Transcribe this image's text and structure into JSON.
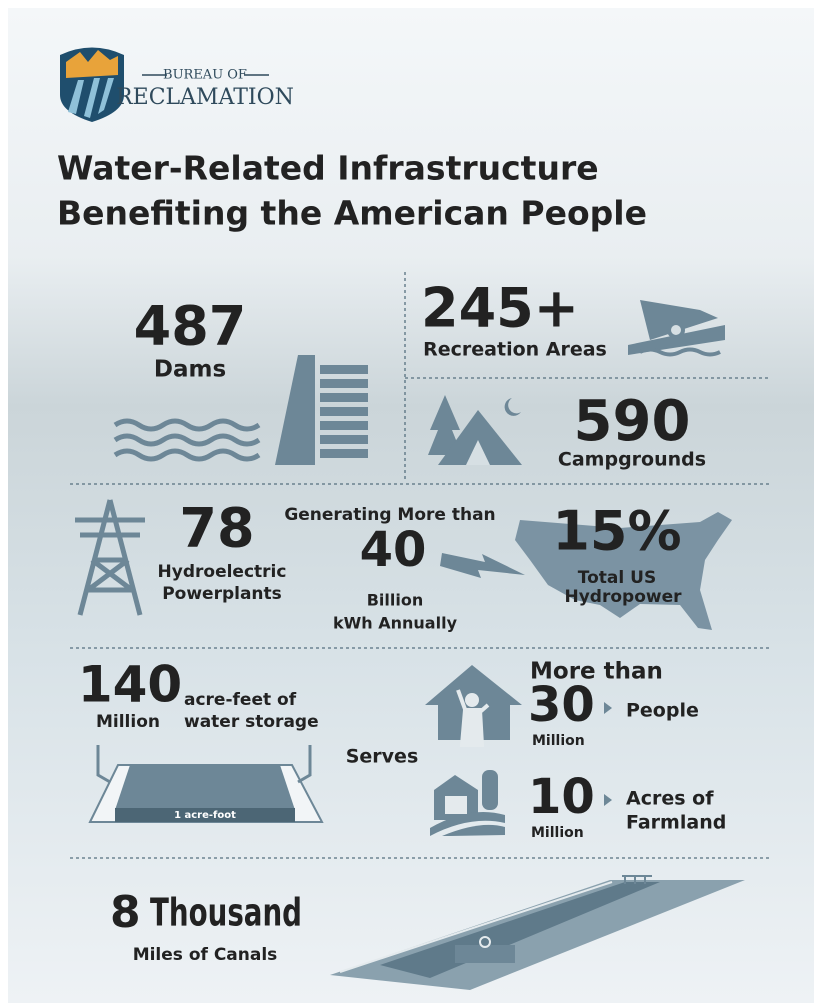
{
  "logo": {
    "top": "BUREAU OF",
    "bottom": "RECLAMATION"
  },
  "title": [
    "Water-Related Infrastructure",
    "Benefiting the American People"
  ],
  "dams": {
    "number": "487",
    "label": "Dams"
  },
  "recreation": {
    "number": "245+",
    "label": "Recreation Areas"
  },
  "campgrounds": {
    "number": "590",
    "label": "Campgrounds"
  },
  "hydro": {
    "number": "78",
    "label": [
      "Hydroelectric",
      "Powerplants"
    ]
  },
  "generation": {
    "lead": "Generating More than",
    "number": "40",
    "label": [
      "Billion",
      "kWh Annually"
    ]
  },
  "share": {
    "number": "15%",
    "label": [
      "Total US",
      "Hydropower"
    ]
  },
  "storage": {
    "number": "140",
    "unit": "Million",
    "label": [
      "acre-feet of",
      "water storage"
    ],
    "icon_label": "1 acre-foot"
  },
  "serves": "Serves",
  "people": {
    "lead": "More than",
    "number": "30",
    "unit": "Million",
    "label": "People"
  },
  "farmland": {
    "number": "10",
    "unit": "Million",
    "label": [
      "Acres of",
      "Farmland"
    ]
  },
  "canals": {
    "number": "8",
    "unit": "Thousand",
    "label": "Miles of Canals"
  }
}
